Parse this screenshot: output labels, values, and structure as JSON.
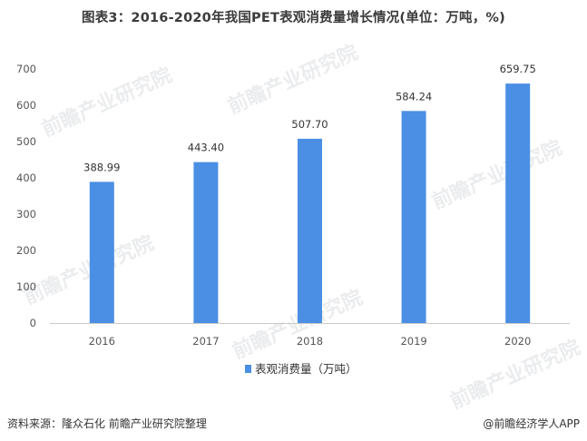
{
  "title": "图表3：2016-2020年我国PET表观消费量增长情况(单位：万吨，%)",
  "watermark_text": "前瞻产业研究院",
  "chart_data": {
    "type": "bar",
    "categories": [
      "2016",
      "2017",
      "2018",
      "2019",
      "2020"
    ],
    "series": [
      {
        "name": "表观消费量（万吨）",
        "values": [
          388.99,
          443.4,
          507.7,
          584.24,
          659.75
        ],
        "labels": [
          "388.99",
          "443.40",
          "507.70",
          "584.24",
          "659.75"
        ],
        "color": "#4a8fe3"
      }
    ],
    "yticks": [
      0,
      100,
      200,
      300,
      400,
      500,
      600,
      700
    ],
    "ylim": [
      0,
      700
    ],
    "grid": false,
    "legend": "bottom-center"
  },
  "footer": {
    "source": "资料来源：隆众石化 前瞻产业研究院整理",
    "brand": "@前瞻经济学人APP"
  }
}
